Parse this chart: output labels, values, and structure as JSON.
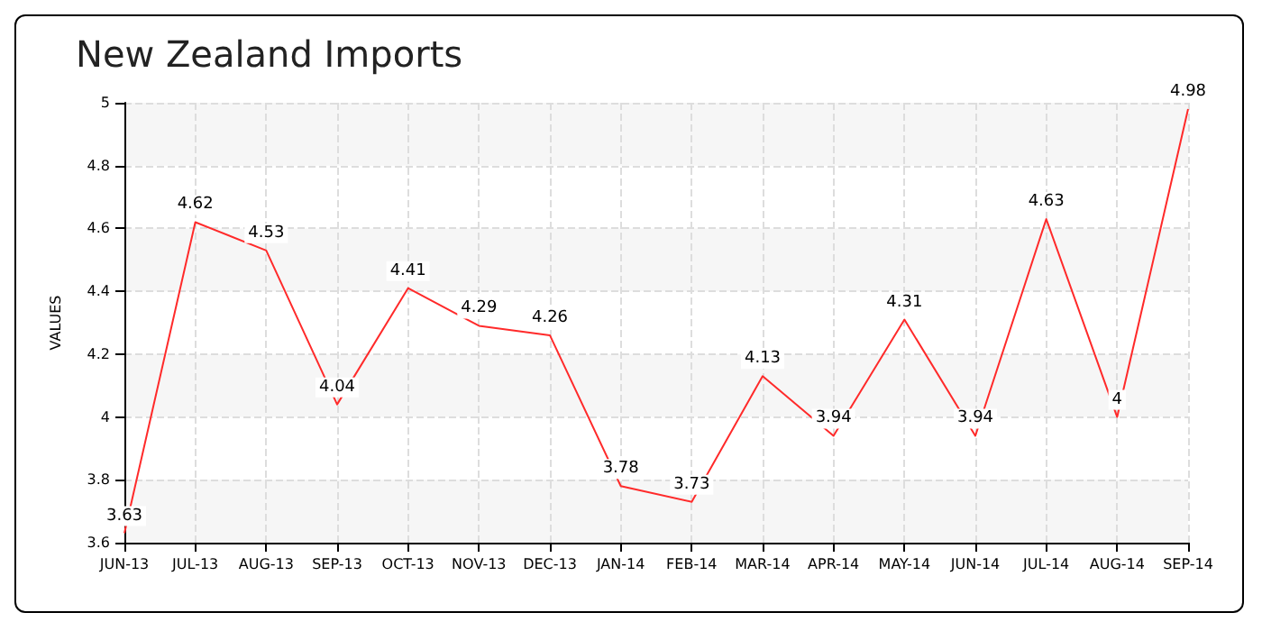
{
  "chart_data": {
    "type": "line",
    "title": "New Zealand Imports",
    "ylabel": "VALUES",
    "categories": [
      "JUN-13",
      "JUL-13",
      "AUG-13",
      "SEP-13",
      "OCT-13",
      "NOV-13",
      "DEC-13",
      "JAN-14",
      "FEB-14",
      "MAR-14",
      "APR-14",
      "MAY-14",
      "JUN-14",
      "JUL-14",
      "AUG-14",
      "SEP-14"
    ],
    "series": [
      {
        "color": "#ff2a2a",
        "values": [
          3.63,
          4.62,
          4.53,
          4.04,
          4.41,
          4.29,
          4.26,
          3.78,
          3.73,
          4.13,
          3.94,
          4.31,
          3.94,
          4.63,
          4,
          4.98
        ]
      }
    ],
    "ylim": [
      3.6,
      5
    ],
    "yticks": [
      3.6,
      3.8,
      4,
      4.2,
      4.4,
      4.6,
      4.8,
      5
    ],
    "grid": true,
    "data_labels": true,
    "marker": "none",
    "line_style": "solid"
  }
}
